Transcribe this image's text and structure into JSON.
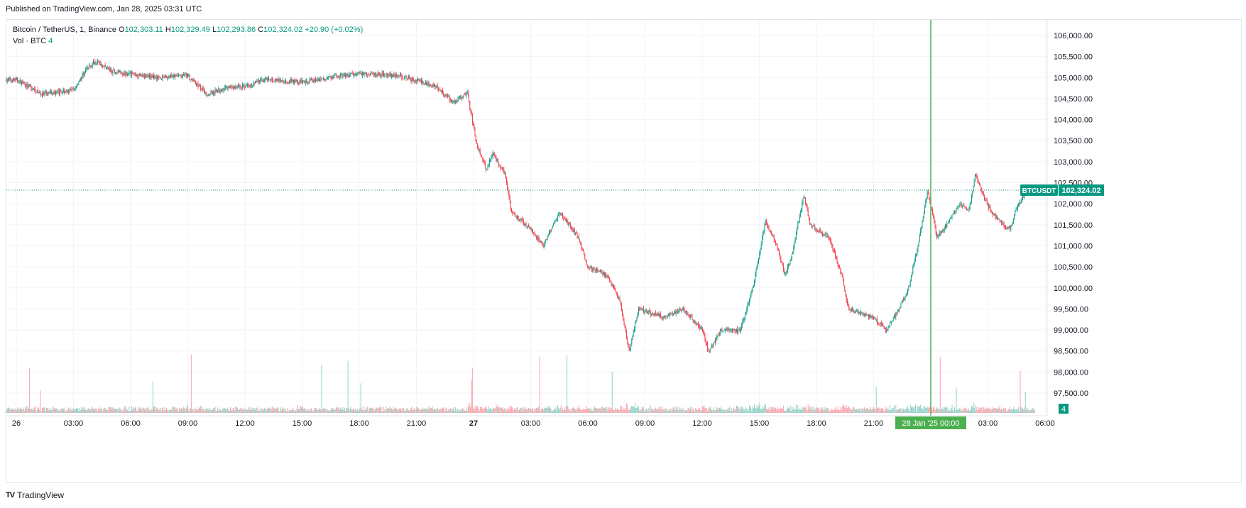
{
  "published": "Published on TradingView.com, Jan 28, 2025 03:31 UTC",
  "legend": {
    "symbol": "Bitcoin / TetherUS, 1, Binance",
    "o_label": "O",
    "o": "102,303.11",
    "h_label": "H",
    "h": "102,329.49",
    "l_label": "L",
    "l": "102,293.86",
    "c_label": "C",
    "c": "102,324.02",
    "change": "+20.90 (+0.02%)",
    "vol_label": "Vol · BTC",
    "vol_value": "4"
  },
  "price_tag": {
    "symbol": "BTCUSDT",
    "value": "102,324.02"
  },
  "volume_tag": "4",
  "crosshair_label": "28 Jan '25    00:00",
  "footer": {
    "brand": "TradingView",
    "logo": "TV"
  },
  "colors": {
    "up": "#089981",
    "down": "#f23645",
    "crosshair": "#4caf50",
    "grid": "#f0f3fa"
  },
  "chart_data": {
    "type": "candlestick",
    "y_ticks": [
      "97,500.00",
      "98,000.00",
      "98,500.00",
      "99,000.00",
      "99,500.00",
      "100,000.00",
      "100,500.00",
      "101,000.00",
      "101,500.00",
      "102,000.00",
      "102,500.00",
      "103,000.00",
      "103,500.00",
      "104,000.00",
      "104,500.00",
      "105,000.00",
      "105,500.00",
      "106,000.00"
    ],
    "x_ticks": [
      "26",
      "03:00",
      "06:00",
      "09:00",
      "12:00",
      "15:00",
      "18:00",
      "21:00",
      "27",
      "03:00",
      "06:00",
      "09:00",
      "12:00",
      "15:00",
      "18:00",
      "21:00",
      "03:00",
      "06:00"
    ],
    "ylim": [
      97000,
      106200
    ],
    "price_anchors": [
      [
        "26 00:00",
        104950
      ],
      [
        "26 01:20",
        104600
      ],
      [
        "26 03:00",
        104700
      ],
      [
        "26 03:40",
        105200
      ],
      [
        "26 04:10",
        105400
      ],
      [
        "26 05:00",
        105150
      ],
      [
        "26 07:30",
        105000
      ],
      [
        "26 09:00",
        105050
      ],
      [
        "26 10:00",
        104600
      ],
      [
        "26 11:00",
        104750
      ],
      [
        "26 12:00",
        104800
      ],
      [
        "26 13:00",
        104950
      ],
      [
        "26 15:00",
        104900
      ],
      [
        "26 18:00",
        105100
      ],
      [
        "26 20:00",
        105050
      ],
      [
        "26 22:00",
        104800
      ],
      [
        "26 23:00",
        104400
      ],
      [
        "26 23:40",
        104650
      ],
      [
        "27 00:10",
        103400
      ],
      [
        "27 00:40",
        102800
      ],
      [
        "27 01:00",
        103200
      ],
      [
        "27 01:40",
        102700
      ],
      [
        "27 02:00",
        101800
      ],
      [
        "27 03:00",
        101400
      ],
      [
        "27 03:40",
        101000
      ],
      [
        "27 04:30",
        101800
      ],
      [
        "27 05:30",
        101200
      ],
      [
        "27 06:00",
        100500
      ],
      [
        "27 07:00",
        100300
      ],
      [
        "27 07:40",
        99700
      ],
      [
        "27 08:10",
        98500
      ],
      [
        "27 08:40",
        99500
      ],
      [
        "27 10:00",
        99300
      ],
      [
        "27 11:00",
        99500
      ],
      [
        "27 12:00",
        99000
      ],
      [
        "27 12:20",
        98500
      ],
      [
        "27 13:00",
        99000
      ],
      [
        "27 14:00",
        99000
      ],
      [
        "27 14:40",
        100000
      ],
      [
        "27 15:20",
        101600
      ],
      [
        "27 16:00",
        100900
      ],
      [
        "27 16:20",
        100300
      ],
      [
        "27 16:40",
        100700
      ],
      [
        "27 17:20",
        102200
      ],
      [
        "27 17:40",
        101500
      ],
      [
        "27 18:40",
        101200
      ],
      [
        "27 19:20",
        100300
      ],
      [
        "27 19:40",
        99500
      ],
      [
        "27 20:20",
        99400
      ],
      [
        "27 21:00",
        99300
      ],
      [
        "27 21:40",
        99000
      ],
      [
        "27 22:20",
        99500
      ],
      [
        "27 22:50",
        100000
      ],
      [
        "27 23:20",
        101000
      ],
      [
        "27 23:50",
        102300
      ],
      [
        "28 00:20",
        101200
      ],
      [
        "28 00:50",
        101500
      ],
      [
        "28 01:30",
        102000
      ],
      [
        "28 02:00",
        101800
      ],
      [
        "28 02:20",
        102700
      ],
      [
        "28 02:50",
        102100
      ],
      [
        "28 03:20",
        101700
      ],
      [
        "28 03:50",
        101500
      ],
      [
        "28 04:10",
        101400
      ],
      [
        "28 04:30",
        101900
      ],
      [
        "28 05:00",
        102300
      ],
      [
        "28 05:30",
        102324
      ]
    ],
    "last_price": 102324.02,
    "last_volume": 4,
    "crosshair_time": "28 Jan 00:00"
  }
}
